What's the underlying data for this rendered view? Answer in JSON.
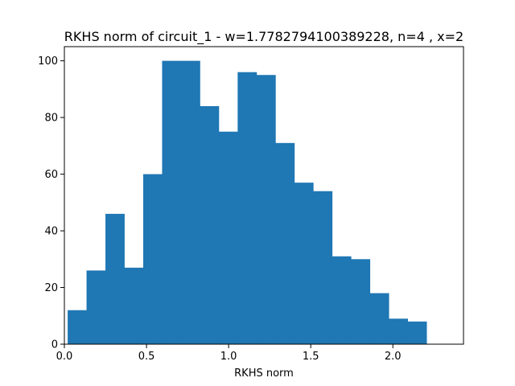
{
  "chart_data": {
    "type": "bar",
    "title": "RKHS norm of circuit_1 - w=1.7782794100389228, n=4 , x=2",
    "xlabel": "RKHS norm",
    "ylabel": "",
    "xlim": [
      0.0,
      2.43
    ],
    "ylim": [
      0,
      105
    ],
    "grid": false,
    "bar_color": "#1f77b4",
    "bin_edges": [
      0.02,
      0.135,
      0.25,
      0.365,
      0.48,
      0.595,
      0.71,
      0.825,
      0.94,
      1.055,
      1.17,
      1.285,
      1.4,
      1.515,
      1.63,
      1.745,
      1.86,
      1.975,
      2.09,
      2.205
    ],
    "values": [
      12,
      26,
      46,
      27,
      60,
      100,
      100,
      84,
      75,
      96,
      95,
      71,
      57,
      54,
      31,
      30,
      18,
      9,
      8
    ],
    "x_ticks": [
      0.0,
      0.5,
      1.0,
      1.5,
      2.0
    ],
    "x_tick_labels": [
      "0.0",
      "0.5",
      "1.0",
      "1.5",
      "2.0"
    ],
    "y_ticks": [
      0,
      20,
      40,
      60,
      80,
      100
    ],
    "y_tick_labels": [
      "0",
      "20",
      "40",
      "60",
      "80",
      "100"
    ]
  }
}
